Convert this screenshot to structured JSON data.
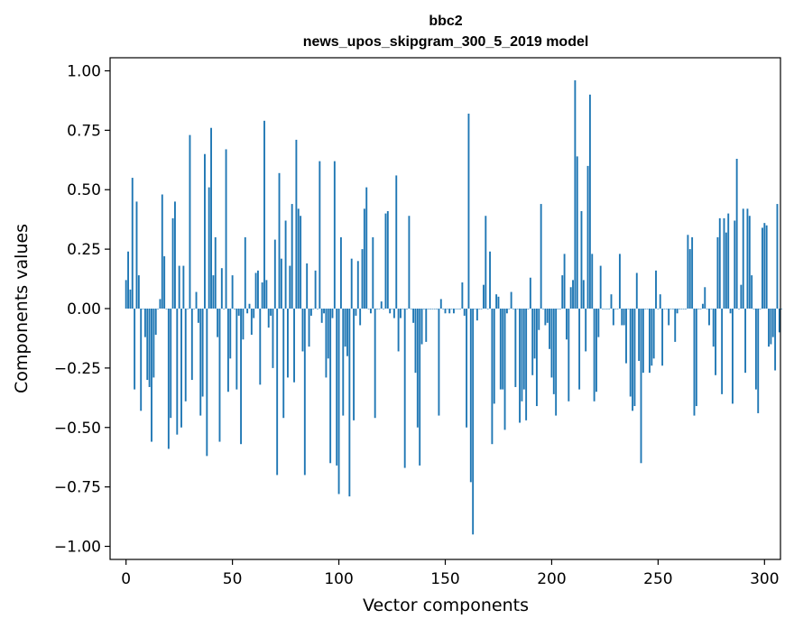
{
  "chart_data": {
    "type": "bar",
    "title_line1": "bbc2",
    "title_line2": "news_upos_skipgram_300_5_2019 model",
    "xlabel": "Vector components",
    "ylabel": "Components values",
    "xlim": [
      -7.5,
      307.5
    ],
    "ylim": [
      -1.055,
      1.055
    ],
    "xticks": [
      0,
      50,
      100,
      150,
      200,
      250,
      300
    ],
    "xtick_labels": [
      "0",
      "50",
      "100",
      "150",
      "200",
      "250",
      "300"
    ],
    "yticks": [
      -1.0,
      -0.75,
      -0.5,
      -0.25,
      0.0,
      0.25,
      0.5,
      0.75,
      1.0
    ],
    "ytick_labels": [
      "−1.00",
      "−0.75",
      "−0.50",
      "−0.25",
      "0.00",
      "0.25",
      "0.50",
      "0.75",
      "1.00"
    ],
    "bar_color": "#1f77b4",
    "grid": false,
    "values": [
      0.12,
      0.24,
      0.08,
      0.55,
      -0.34,
      0.45,
      0.14,
      -0.43,
      0.0,
      -0.12,
      -0.3,
      -0.33,
      -0.56,
      -0.29,
      -0.11,
      0.0,
      0.04,
      0.48,
      0.22,
      0.0,
      -0.59,
      -0.46,
      0.38,
      0.45,
      -0.53,
      0.18,
      -0.5,
      0.18,
      -0.39,
      0.0,
      0.73,
      -0.3,
      0.0,
      0.07,
      -0.06,
      -0.45,
      -0.37,
      0.65,
      -0.62,
      0.51,
      0.76,
      0.14,
      0.3,
      -0.12,
      -0.56,
      0.17,
      0.0,
      0.67,
      -0.35,
      -0.21,
      0.14,
      0.0,
      -0.34,
      -0.03,
      -0.57,
      -0.13,
      0.3,
      -0.02,
      0.02,
      -0.11,
      -0.04,
      0.15,
      0.16,
      -0.32,
      0.11,
      0.79,
      0.12,
      -0.08,
      -0.03,
      -0.25,
      0.29,
      -0.7,
      0.57,
      0.21,
      -0.46,
      0.37,
      -0.29,
      0.18,
      0.44,
      -0.31,
      0.71,
      0.42,
      0.39,
      -0.18,
      -0.7,
      0.19,
      -0.16,
      -0.03,
      0.0,
      0.16,
      0.0,
      0.62,
      -0.06,
      -0.02,
      -0.29,
      -0.21,
      -0.65,
      -0.04,
      0.62,
      -0.66,
      -0.78,
      0.3,
      -0.45,
      -0.16,
      -0.2,
      -0.79,
      0.21,
      -0.47,
      -0.03,
      0.2,
      -0.07,
      0.25,
      0.42,
      0.51,
      -0.0,
      -0.02,
      0.3,
      -0.46,
      0.0,
      0.0,
      0.03,
      0.0,
      0.4,
      0.41,
      -0.02,
      0.0,
      -0.04,
      0.56,
      -0.18,
      -0.04,
      0.0,
      -0.67,
      0.0,
      0.39,
      0.0,
      -0.06,
      -0.27,
      -0.5,
      -0.66,
      -0.15,
      0.0,
      -0.14,
      0.0,
      0.0,
      0.0,
      0.0,
      0.0,
      -0.45,
      0.04,
      0.0,
      -0.02,
      0.0,
      -0.02,
      0.0,
      -0.02,
      0.0,
      0.0,
      0.0,
      0.11,
      -0.03,
      -0.5,
      0.82,
      -0.73,
      -0.95,
      0.0,
      -0.05,
      0.0,
      0.0,
      0.1,
      0.39,
      0.0,
      0.24,
      -0.57,
      -0.4,
      0.06,
      0.05,
      -0.34,
      -0.34,
      -0.51,
      -0.02,
      0.0,
      0.07,
      0.0,
      -0.33,
      0.0,
      -0.48,
      -0.39,
      -0.34,
      -0.47,
      0.0,
      0.13,
      -0.28,
      -0.21,
      -0.41,
      -0.09,
      0.44,
      0.0,
      -0.07,
      -0.06,
      -0.17,
      -0.29,
      -0.36,
      -0.45,
      0.0,
      0.0,
      0.14,
      0.23,
      -0.13,
      -0.39,
      0.09,
      0.12,
      0.96,
      0.64,
      -0.34,
      0.41,
      0.12,
      -0.18,
      0.6,
      0.9,
      0.23,
      -0.39,
      -0.35,
      -0.12,
      0.18,
      0.0,
      0.0,
      0.0,
      0.0,
      0.06,
      -0.07,
      0.0,
      0.0,
      0.23,
      -0.07,
      -0.07,
      -0.23,
      0.0,
      -0.37,
      -0.43,
      -0.41,
      0.15,
      -0.22,
      -0.65,
      -0.27,
      0.0,
      0.0,
      -0.27,
      -0.24,
      -0.21,
      0.16,
      0.0,
      0.06,
      -0.24,
      0.0,
      0.0,
      -0.07,
      0.0,
      0.0,
      -0.14,
      -0.02,
      0.0,
      0.0,
      0.0,
      0.0,
      0.31,
      0.25,
      0.3,
      -0.45,
      -0.41,
      0.0,
      0.0,
      0.02,
      0.09,
      0.0,
      -0.07,
      0.0,
      -0.16,
      -0.28,
      0.3,
      0.38,
      -0.36,
      0.38,
      0.32,
      0.4,
      -0.02,
      -0.4,
      0.37,
      0.63,
      0.0,
      0.1,
      0.42,
      -0.27,
      0.42,
      0.39,
      0.14,
      0.0,
      -0.34,
      -0.44,
      0.0,
      0.34,
      0.36,
      0.35,
      -0.16,
      -0.15,
      -0.12,
      -0.26,
      0.44,
      -0.1,
      0.0
    ]
  }
}
